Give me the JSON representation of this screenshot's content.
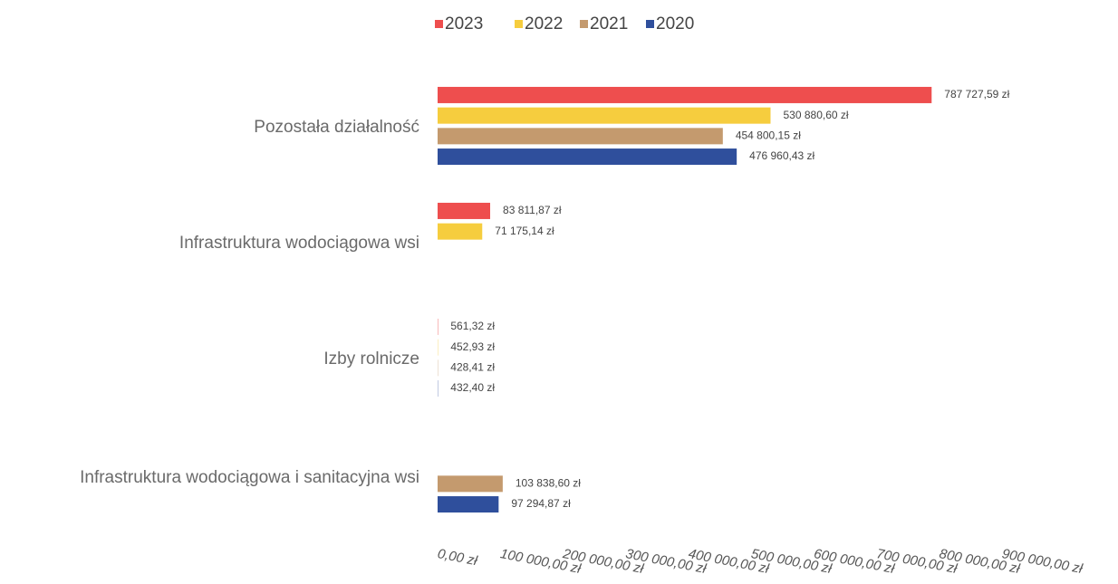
{
  "chart_data": {
    "type": "hbar",
    "categories": [
      "Pozostała działalność",
      "Infrastruktura wodociągowa wsi",
      "Izby rolnicze",
      "Infrastruktura wodociągowa i sanitacyjna wsi"
    ],
    "series": [
      {
        "name": "2023",
        "color": "#ee4e4e",
        "values": [
          787727.59,
          83811.87,
          561.32,
          null
        ],
        "value_labels": [
          "787 727,59 zł",
          "83 811,87 zł",
          "561,32 zł",
          null
        ]
      },
      {
        "name": "2022",
        "color": "#f6cd3e",
        "values": [
          530880.6,
          71175.14,
          452.93,
          null
        ],
        "value_labels": [
          "530 880,60 zł",
          "71 175,14 zł",
          "452,93 zł",
          null
        ]
      },
      {
        "name": "2021",
        "color": "#c49a6e",
        "values": [
          454800.15,
          null,
          428.41,
          103838.6
        ],
        "value_labels": [
          "454 800,15 zł",
          null,
          "428,41 zł",
          "103 838,60 zł"
        ]
      },
      {
        "name": "2020",
        "color": "#2f4f9c",
        "values": [
          476960.43,
          null,
          432.4,
          97294.87
        ],
        "value_labels": [
          "476 960,43 zł",
          null,
          "432,40 zł",
          "97 294,87 zł"
        ]
      }
    ],
    "xlim": [
      0,
      900000
    ],
    "xticks": [
      {
        "value": 0,
        "label": "0,00 zł"
      },
      {
        "value": 100000,
        "label": "100 000,00 zł"
      },
      {
        "value": 200000,
        "label": "200 000,00 zł"
      },
      {
        "value": 300000,
        "label": "300 000,00 zł"
      },
      {
        "value": 400000,
        "label": "400 000,00 zł"
      },
      {
        "value": 500000,
        "label": "500 000,00 zł"
      },
      {
        "value": 600000,
        "label": "600 000,00 zł"
      },
      {
        "value": 700000,
        "label": "700 000,00 zł"
      },
      {
        "value": 800000,
        "label": "800 000,00 zł"
      },
      {
        "value": 900000,
        "label": "900 000,00 zł"
      }
    ],
    "legend": "top"
  }
}
